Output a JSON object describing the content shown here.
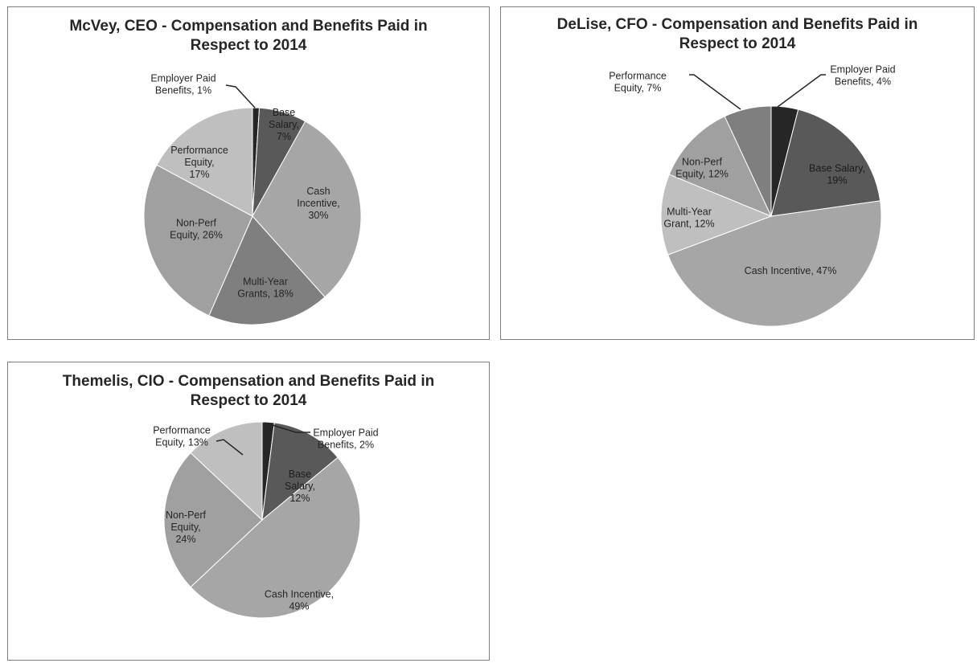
{
  "chart_data": [
    {
      "type": "pie",
      "title": [
        "McVey, CEO - Compensation and Benefits Paid in",
        "Respect to 2014"
      ],
      "slices": [
        {
          "label": "Employer Paid Benefits",
          "value": 1,
          "label_lines": [
            "Employer Paid",
            "Benefits, 1%"
          ],
          "color": "#262626"
        },
        {
          "label": "Base Salary",
          "value": 7,
          "label_lines": [
            "Base",
            "Salary,",
            "7%"
          ],
          "color": "#595959"
        },
        {
          "label": "Cash Incentive",
          "value": 30,
          "label_lines": [
            "Cash",
            "Incentive,",
            "30%"
          ],
          "color": "#a6a6a6"
        },
        {
          "label": "Multi-Year Grants",
          "value": 18,
          "label_lines": [
            "Multi-Year",
            "Grants, 18%"
          ],
          "color": "#7f7f7f"
        },
        {
          "label": "Non-Perf Equity",
          "value": 26,
          "label_lines": [
            "Non-Perf",
            "Equity, 26%"
          ],
          "color": "#a0a0a0"
        },
        {
          "label": "Performance Equity",
          "value": 17,
          "label_lines": [
            "Performance",
            "Equity,",
            "17%"
          ],
          "color": "#bfbfbf"
        }
      ]
    },
    {
      "type": "pie",
      "title": [
        "DeLise, CFO - Compensation and Benefits Paid in",
        "Respect to 2014"
      ],
      "slices": [
        {
          "label": "Employer Paid Benefits",
          "value": 4,
          "label_lines": [
            "Employer Paid",
            "Benefits, 4%"
          ],
          "color": "#262626"
        },
        {
          "label": "Base Salary",
          "value": 19,
          "label_lines": [
            "Base Salary,",
            "19%"
          ],
          "color": "#595959"
        },
        {
          "label": "Cash Incentive",
          "value": 47,
          "label_lines": [
            "Cash Incentive, 47%"
          ],
          "color": "#a6a6a6"
        },
        {
          "label": "Multi-Year Grant",
          "value": 12,
          "label_lines": [
            "Multi-Year",
            "Grant, 12%"
          ],
          "color": "#bfbfbf"
        },
        {
          "label": "Non-Perf Equity",
          "value": 12,
          "label_lines": [
            "Non-Perf",
            "Equity, 12%"
          ],
          "color": "#a0a0a0"
        },
        {
          "label": "Performance Equity",
          "value": 7,
          "label_lines": [
            "Performance",
            "Equity, 7%"
          ],
          "color": "#7f7f7f"
        }
      ]
    },
    {
      "type": "pie",
      "title": [
        "Themelis, CIO - Compensation and Benefits Paid in",
        "Respect to 2014"
      ],
      "slices": [
        {
          "label": "Employer Paid Benefits",
          "value": 2,
          "label_lines": [
            "Employer Paid",
            "Benefits, 2%"
          ],
          "color": "#262626"
        },
        {
          "label": "Base Salary",
          "value": 12,
          "label_lines": [
            "Base",
            "Salary,",
            "12%"
          ],
          "color": "#595959"
        },
        {
          "label": "Cash Incentive",
          "value": 49,
          "label_lines": [
            "Cash Incentive,",
            "49%"
          ],
          "color": "#a6a6a6"
        },
        {
          "label": "Non-Perf Equity",
          "value": 24,
          "label_lines": [
            "Non-Perf",
            "Equity,",
            "24%"
          ],
          "color": "#a0a0a0"
        },
        {
          "label": "Performance Equity",
          "value": 13,
          "label_lines": [
            "Performance",
            "Equity, 13%"
          ],
          "color": "#bfbfbf"
        }
      ]
    }
  ]
}
